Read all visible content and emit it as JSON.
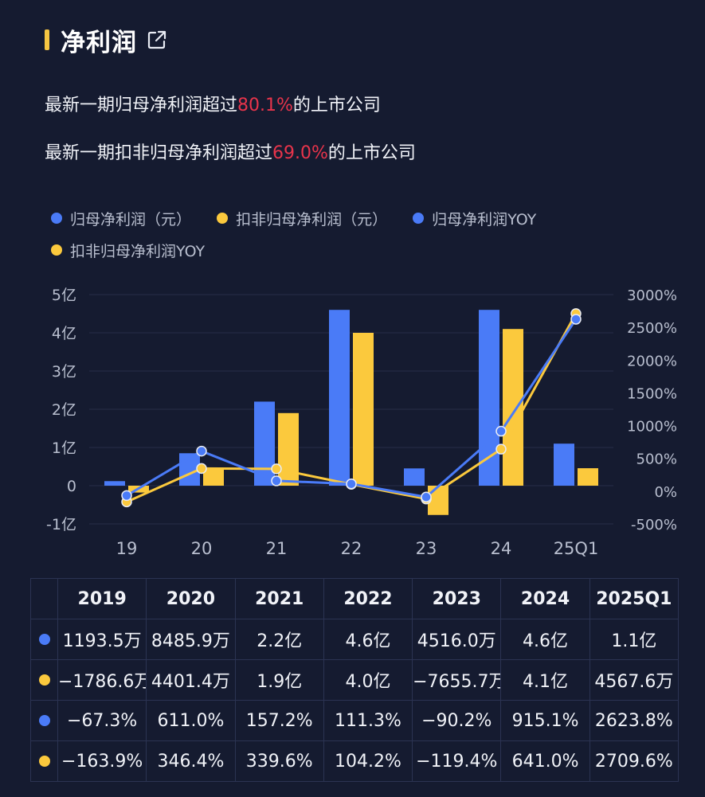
{
  "header": {
    "title": "净利润",
    "link_icon": "external-link-icon"
  },
  "stats": [
    {
      "prefix": "最新一期归母净利润超过",
      "value": "80.1%",
      "suffix": "的上市公司"
    },
    {
      "prefix": "最新一期扣非归母净利润超过",
      "value": "69.0%",
      "suffix": "的上市公司"
    }
  ],
  "colors": {
    "blue": "#4a7bf7",
    "yellow": "#fbc93d",
    "highlight": "#e8344b",
    "background": "#151b30"
  },
  "legend": [
    {
      "label": "归母净利润（元）",
      "color": "#4a7bf7"
    },
    {
      "label": "扣非归母净利润（元）",
      "color": "#fbc93d"
    },
    {
      "label": "归母净利润YOY",
      "color": "#4a7bf7"
    },
    {
      "label": "扣非归母净利润YOY",
      "color": "#fbc93d"
    }
  ],
  "chart_data": {
    "type": "bar",
    "categories": [
      "19",
      "20",
      "21",
      "22",
      "23",
      "24",
      "25Q1"
    ],
    "left_axis": {
      "ticks": [
        "5亿",
        "4亿",
        "3亿",
        "2亿",
        "1亿",
        "0",
        "-1亿"
      ],
      "ylim": [
        -1,
        5
      ],
      "unit": "亿"
    },
    "right_axis": {
      "ticks": [
        "3000%",
        "2500%",
        "2000%",
        "1500%",
        "1000%",
        "500%",
        "0%",
        "-500%"
      ],
      "ylim": [
        -500,
        3000
      ]
    },
    "series": [
      {
        "name": "归母净利润（元）",
        "kind": "bar",
        "axis": "left",
        "color": "#4a7bf7",
        "values": [
          0.119,
          0.849,
          2.2,
          4.6,
          0.452,
          4.6,
          1.1
        ]
      },
      {
        "name": "扣非归母净利润（元）",
        "kind": "bar",
        "axis": "left",
        "color": "#fbc93d",
        "values": [
          -0.179,
          0.44,
          1.9,
          4.0,
          -0.766,
          4.1,
          0.457
        ]
      },
      {
        "name": "归母净利润YOY",
        "kind": "line",
        "axis": "right",
        "color": "#4a7bf7",
        "values": [
          -67.3,
          611.0,
          157.2,
          111.3,
          -90.2,
          915.1,
          2623.8
        ]
      },
      {
        "name": "扣非归母净利润YOY",
        "kind": "line",
        "axis": "right",
        "color": "#fbc93d",
        "values": [
          -163.9,
          346.4,
          339.6,
          104.2,
          -119.4,
          641.0,
          2709.6
        ]
      }
    ]
  },
  "table": {
    "headers": [
      "2019",
      "2020",
      "2021",
      "2022",
      "2023",
      "2024",
      "2025Q1"
    ],
    "rows": [
      {
        "color": "#4a7bf7",
        "cells": [
          "1193.5万",
          "8485.9万",
          "2.2亿",
          "4.6亿",
          "4516.0万",
          "4.6亿",
          "1.1亿"
        ]
      },
      {
        "color": "#fbc93d",
        "cells": [
          "−1786.6万",
          "4401.4万",
          "1.9亿",
          "4.0亿",
          "−7655.7万",
          "4.1亿",
          "4567.6万"
        ]
      },
      {
        "color": "#4a7bf7",
        "cells": [
          "−67.3%",
          "611.0%",
          "157.2%",
          "111.3%",
          "−90.2%",
          "915.1%",
          "2623.8%"
        ]
      },
      {
        "color": "#fbc93d",
        "cells": [
          "−163.9%",
          "346.4%",
          "339.6%",
          "104.2%",
          "−119.4%",
          "641.0%",
          "2709.6%"
        ]
      }
    ]
  }
}
